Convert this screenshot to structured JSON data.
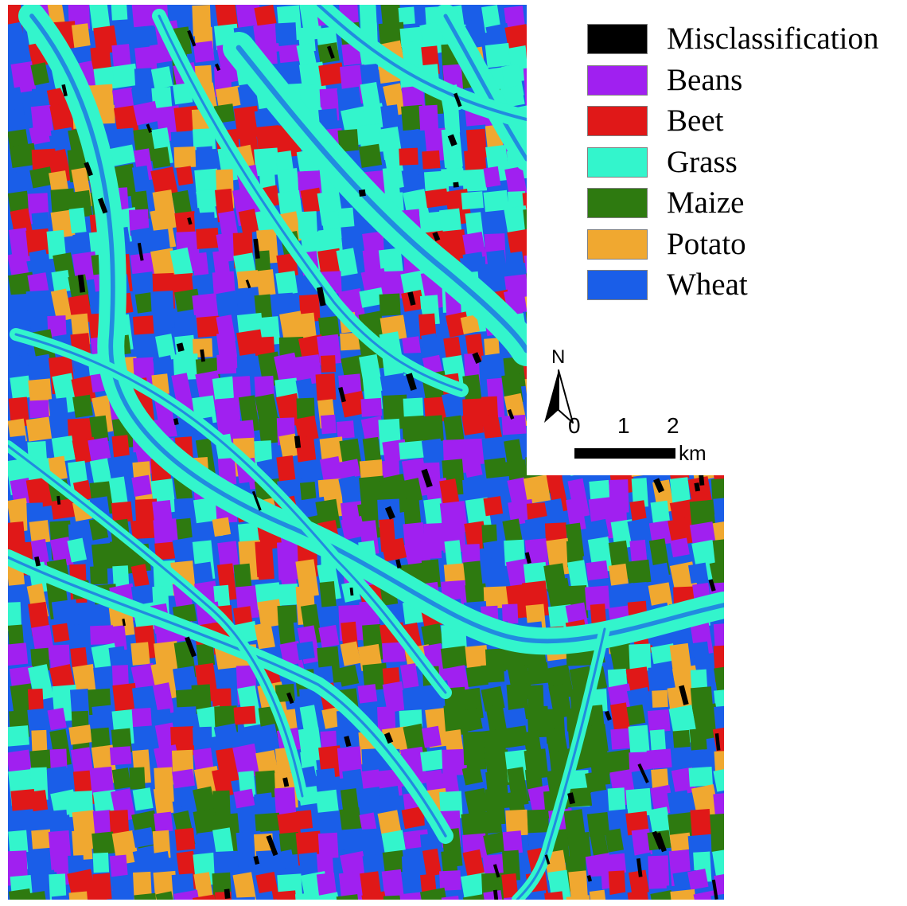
{
  "legend": {
    "items": [
      {
        "label": "Misclassification",
        "color": "#000000"
      },
      {
        "label": "Beans",
        "color": "#a020f0"
      },
      {
        "label": "Beet",
        "color": "#e01818"
      },
      {
        "label": "Grass",
        "color": "#33f5cc"
      },
      {
        "label": "Maize",
        "color": "#2e7a10"
      },
      {
        "label": "Potato",
        "color": "#f0a830"
      },
      {
        "label": "Wheat",
        "color": "#1a5ee8"
      }
    ]
  },
  "north_arrow": {
    "label": "N",
    "icon": "north-arrow-icon"
  },
  "scale_bar": {
    "ticks": [
      "0",
      "1",
      "2"
    ],
    "unit": "km"
  }
}
